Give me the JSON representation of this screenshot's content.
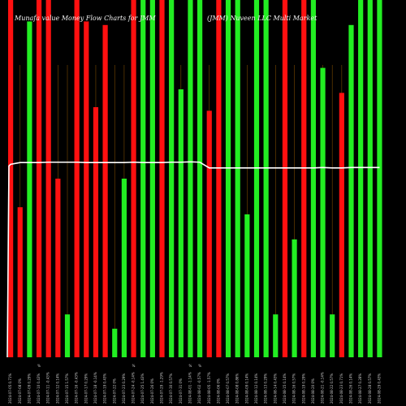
{
  "chart_data": {
    "type": "bar",
    "title_left": "Munafa value Money Flow Charts for JMM",
    "title_right": "(JMM) Nuveen LLC Multi Market",
    "x_labels": [
      "2024-07-05 0.71%",
      "2024-07-08 0%",
      "2024-07-09 0.29%",
      "2024-07-10 0.43%",
      "2024-07-11 -0.43%",
      "2024-07-12 0.14%",
      "2024-07-15 1.57%",
      "2024-07-16 -0.43%",
      "2024-07-17 0.29%",
      "2024-07-18 -0.14%",
      "2024-07-19 0.43%",
      "2024-07-22 0%",
      "2024-07-23 0.29%",
      "2024-07-24 -0.14%",
      "2024-07-25 1.43%",
      "2024-07-26 0%",
      "2024-07-29 -1.29%",
      "2024-07-30 0.57%",
      "2024-07-31 0%",
      "2024-08-01 -1.14%",
      "2024-08-02 -0.57%",
      "2024-08-05 -1.57%",
      "2024-08-06 0%",
      "2024-08-07 0.57%",
      "2024-08-08 0.86%",
      "2024-08-09 0.14%",
      "2024-08-12 0.14%",
      "2024-08-13 0.29%",
      "2024-08-14 0.43%",
      "2024-08-15 0.14%",
      "2024-08-16 0.57%",
      "2024-08-19 0.29%",
      "2024-08-20 0%",
      "2024-08-21 -0.14%",
      "2024-08-22 0.57%",
      "2024-08-23 0.71%",
      "2024-08-26 0.14%",
      "2024-08-27 0.28%",
      "2024-08-28 0.57%",
      "2024-08-29 0.43%"
    ],
    "percent_marks": [
      {
        "index": 3,
        "label": "%"
      },
      {
        "index": 13,
        "label": "%"
      },
      {
        "index": 19,
        "label": "%"
      },
      {
        "index": 20,
        "label": "%"
      }
    ],
    "bars": [
      {
        "color": "red",
        "value": 1.0
      },
      {
        "color": "red",
        "value": 0.42
      },
      {
        "color": "green",
        "value": 0.94
      },
      {
        "color": "red",
        "value": 1.0
      },
      {
        "color": "red",
        "value": 1.0
      },
      {
        "color": "red",
        "value": 0.5
      },
      {
        "color": "green",
        "value": 0.12
      },
      {
        "color": "red",
        "value": 1.0
      },
      {
        "color": "red",
        "value": 0.94
      },
      {
        "color": "red",
        "value": 0.7
      },
      {
        "color": "red",
        "value": 0.93
      },
      {
        "color": "green",
        "value": 0.08
      },
      {
        "color": "green",
        "value": 0.5
      },
      {
        "color": "red",
        "value": 1.0
      },
      {
        "color": "green",
        "value": 1.0
      },
      {
        "color": "green",
        "value": 1.0
      },
      {
        "color": "red",
        "value": 1.0
      },
      {
        "color": "green",
        "value": 1.0
      },
      {
        "color": "green",
        "value": 0.75
      },
      {
        "color": "green",
        "value": 1.0
      },
      {
        "color": "green",
        "value": 1.0
      },
      {
        "color": "red",
        "value": 0.69
      },
      {
        "color": "red",
        "value": 1.0
      },
      {
        "color": "green",
        "value": 1.0
      },
      {
        "color": "green",
        "value": 1.0
      },
      {
        "color": "green",
        "value": 0.4
      },
      {
        "color": "green",
        "value": 1.0
      },
      {
        "color": "green",
        "value": 1.0
      },
      {
        "color": "green",
        "value": 0.12
      },
      {
        "color": "red",
        "value": 1.0
      },
      {
        "color": "green",
        "value": 0.33
      },
      {
        "color": "red",
        "value": 1.0
      },
      {
        "color": "green",
        "value": 1.0
      },
      {
        "color": "green",
        "value": 0.81
      },
      {
        "color": "green",
        "value": 0.12
      },
      {
        "color": "red",
        "value": 0.74
      },
      {
        "color": "green",
        "value": 0.93
      },
      {
        "color": "green",
        "value": 1.0
      },
      {
        "color": "green",
        "value": 1.0
      },
      {
        "color": "green",
        "value": 1.0
      }
    ],
    "price_line": [
      0.54,
      0.545,
      0.545,
      0.545,
      0.546,
      0.546,
      0.546,
      0.546,
      0.545,
      0.545,
      0.545,
      0.545,
      0.545,
      0.546,
      0.545,
      0.545,
      0.545,
      0.546,
      0.546,
      0.547,
      0.546,
      0.53,
      0.53,
      0.53,
      0.53,
      0.53,
      0.53,
      0.53,
      0.53,
      0.53,
      0.53,
      0.53,
      0.53,
      0.531,
      0.53,
      0.53,
      0.531,
      0.531,
      0.531,
      0.531
    ],
    "colors": {
      "red": "#ff1010",
      "green": "#22ee22",
      "line": "#ffffff",
      "wick": "#7a4a00",
      "background": "#000000"
    }
  }
}
